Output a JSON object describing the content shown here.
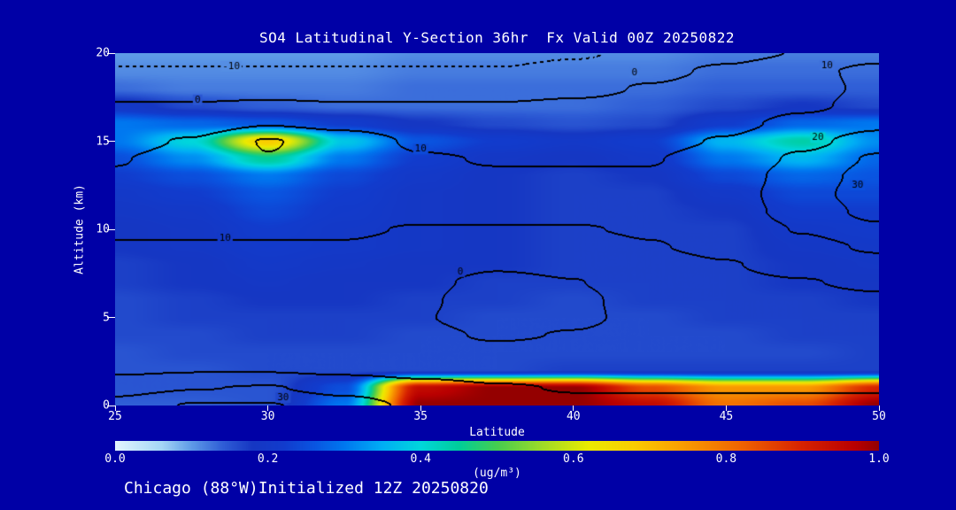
{
  "page": {
    "background": "#0000a6",
    "text_color": "#ffffff"
  },
  "title": "SO4 Latitudinal Y-Section 36hr  Fx Valid 00Z 20250822",
  "footer": "Chicago (88°W)Initialized 12Z 20250820",
  "axes": {
    "x_label": "Latitude",
    "y_label": "Altitude (km)",
    "x_ticks": [
      25,
      30,
      35,
      40,
      45,
      50
    ],
    "y_ticks": [
      0,
      5,
      10,
      15,
      20
    ],
    "x_range": [
      25,
      50
    ],
    "y_range": [
      0,
      20
    ]
  },
  "colorbar": {
    "label": "(ug/m³)",
    "tick_labels": [
      "0.0",
      "0.2",
      "0.4",
      "0.6",
      "0.8",
      "1.0"
    ],
    "range": [
      0,
      1
    ],
    "stops": [
      [
        0.0,
        228,
        246,
        255
      ],
      [
        0.06,
        165,
        215,
        246
      ],
      [
        0.1,
        95,
        155,
        232
      ],
      [
        0.14,
        48,
        95,
        215
      ],
      [
        0.18,
        22,
        55,
        195
      ],
      [
        0.22,
        18,
        60,
        205
      ],
      [
        0.26,
        10,
        85,
        225
      ],
      [
        0.3,
        0,
        120,
        240
      ],
      [
        0.35,
        0,
        175,
        245
      ],
      [
        0.4,
        0,
        215,
        220
      ],
      [
        0.45,
        0,
        205,
        155
      ],
      [
        0.5,
        70,
        205,
        80
      ],
      [
        0.56,
        160,
        220,
        40
      ],
      [
        0.62,
        235,
        235,
        0
      ],
      [
        0.68,
        250,
        205,
        0
      ],
      [
        0.74,
        250,
        160,
        0
      ],
      [
        0.82,
        240,
        100,
        0
      ],
      [
        0.9,
        215,
        35,
        0
      ],
      [
        0.97,
        185,
        0,
        0
      ],
      [
        1.0,
        148,
        0,
        0
      ]
    ]
  },
  "chart_data": {
    "type": "heatmap",
    "title": "SO4 Latitudinal Y-Section 36hr Fx Valid 00Z 20250822",
    "xlabel": "Latitude",
    "ylabel": "Altitude (km)",
    "xlim": [
      25,
      50
    ],
    "ylim": [
      0,
      20
    ],
    "value_range": [
      0.0,
      1.0
    ],
    "x_lat": [
      25,
      27.5,
      30,
      32.5,
      35,
      37.5,
      40,
      42.5,
      45,
      47.5,
      50
    ],
    "y_alt_km": [
      20,
      19,
      18,
      17,
      16,
      15,
      14,
      13,
      12,
      11,
      10,
      9,
      8,
      7,
      6,
      5,
      4,
      3,
      2,
      1,
      0
    ],
    "so4_ug_m3": [
      [
        0.1,
        0.1,
        0.1,
        0.1,
        0.11,
        0.11,
        0.11,
        0.11,
        0.12,
        0.12,
        0.12
      ],
      [
        0.11,
        0.11,
        0.11,
        0.11,
        0.12,
        0.12,
        0.12,
        0.12,
        0.13,
        0.13,
        0.13
      ],
      [
        0.13,
        0.12,
        0.12,
        0.12,
        0.13,
        0.13,
        0.13,
        0.13,
        0.14,
        0.14,
        0.14
      ],
      [
        0.2,
        0.16,
        0.14,
        0.13,
        0.13,
        0.13,
        0.13,
        0.14,
        0.16,
        0.18,
        0.16
      ],
      [
        0.3,
        0.28,
        0.26,
        0.22,
        0.18,
        0.16,
        0.15,
        0.16,
        0.22,
        0.28,
        0.3
      ],
      [
        0.3,
        0.4,
        0.68,
        0.38,
        0.26,
        0.22,
        0.2,
        0.22,
        0.36,
        0.44,
        0.32
      ],
      [
        0.25,
        0.32,
        0.45,
        0.3,
        0.22,
        0.19,
        0.18,
        0.2,
        0.3,
        0.36,
        0.28
      ],
      [
        0.22,
        0.25,
        0.3,
        0.24,
        0.2,
        0.18,
        0.17,
        0.18,
        0.24,
        0.28,
        0.26
      ],
      [
        0.2,
        0.22,
        0.26,
        0.22,
        0.19,
        0.18,
        0.17,
        0.17,
        0.2,
        0.24,
        0.24
      ],
      [
        0.19,
        0.2,
        0.24,
        0.21,
        0.19,
        0.18,
        0.17,
        0.17,
        0.18,
        0.22,
        0.22
      ],
      [
        0.18,
        0.19,
        0.22,
        0.2,
        0.19,
        0.18,
        0.17,
        0.17,
        0.17,
        0.2,
        0.21
      ],
      [
        0.18,
        0.19,
        0.21,
        0.2,
        0.19,
        0.18,
        0.17,
        0.17,
        0.17,
        0.19,
        0.2
      ],
      [
        0.17,
        0.18,
        0.2,
        0.19,
        0.18,
        0.18,
        0.17,
        0.17,
        0.17,
        0.18,
        0.19
      ],
      [
        0.17,
        0.18,
        0.19,
        0.18,
        0.18,
        0.17,
        0.17,
        0.17,
        0.17,
        0.18,
        0.18
      ],
      [
        0.16,
        0.17,
        0.18,
        0.18,
        0.17,
        0.17,
        0.16,
        0.17,
        0.17,
        0.17,
        0.18
      ],
      [
        0.16,
        0.17,
        0.17,
        0.17,
        0.17,
        0.16,
        0.16,
        0.16,
        0.17,
        0.17,
        0.17
      ],
      [
        0.16,
        0.16,
        0.17,
        0.17,
        0.16,
        0.16,
        0.16,
        0.16,
        0.16,
        0.17,
        0.17
      ],
      [
        0.15,
        0.16,
        0.16,
        0.16,
        0.16,
        0.16,
        0.16,
        0.16,
        0.16,
        0.16,
        0.17
      ],
      [
        0.15,
        0.15,
        0.16,
        0.16,
        0.16,
        0.16,
        0.17,
        0.17,
        0.17,
        0.17,
        0.17
      ],
      [
        0.15,
        0.15,
        0.15,
        0.25,
        0.95,
        1.0,
        1.0,
        0.85,
        0.75,
        0.75,
        0.9
      ],
      [
        0.14,
        0.14,
        0.15,
        0.3,
        1.0,
        1.0,
        1.0,
        0.95,
        0.8,
        0.85,
        1.0
      ]
    ],
    "contour_levels": [
      -10,
      0,
      10,
      20,
      30
    ],
    "contour_color": "#000000",
    "contour_field": [
      [
        -14,
        -14,
        -14,
        -14,
        -14,
        -14,
        -11,
        -7,
        -3,
        1,
        6
      ],
      [
        -9,
        -9,
        -9,
        -9,
        -9,
        -9,
        -6,
        -2,
        2,
        8,
        13
      ],
      [
        -4,
        -4,
        -4,
        -4,
        -4,
        -4,
        -2,
        1,
        4,
        8,
        12
      ],
      [
        1,
        1,
        2,
        1,
        1,
        1,
        2,
        3,
        5,
        9,
        13
      ],
      [
        5,
        6,
        10,
        8,
        5,
        5,
        5,
        6,
        8,
        13,
        18
      ],
      [
        8,
        11,
        21,
        15,
        9,
        8,
        8,
        8,
        11,
        18,
        25
      ],
      [
        10,
        13,
        20,
        16,
        11,
        10,
        10,
        10,
        14,
        22,
        32
      ],
      [
        11,
        12,
        14,
        13,
        11,
        11,
        11,
        11,
        15,
        25,
        35
      ],
      [
        12,
        12,
        12,
        12,
        12,
        12,
        12,
        12,
        16,
        26,
        37
      ],
      [
        12,
        12,
        12,
        12,
        12,
        12,
        12,
        12,
        16,
        24,
        34
      ],
      [
        11,
        11,
        11,
        11,
        10,
        10,
        10,
        11,
        14,
        21,
        28
      ],
      [
        10,
        10,
        10,
        10,
        9,
        7,
        8,
        10,
        12,
        17,
        22
      ],
      [
        9,
        9,
        9,
        9,
        6,
        2,
        4,
        8,
        10,
        13,
        16
      ],
      [
        8,
        8,
        8,
        8,
        3,
        -3,
        0,
        6,
        9,
        10,
        12
      ],
      [
        7,
        7,
        7,
        7,
        2,
        -6,
        -2,
        5,
        7,
        8,
        9
      ],
      [
        6,
        6,
        6,
        6,
        1,
        -5,
        -2,
        4,
        6,
        7,
        7
      ],
      [
        6,
        6,
        6,
        6,
        3,
        -1,
        1,
        5,
        6,
        6,
        6
      ],
      [
        7,
        7,
        7,
        7,
        6,
        4,
        5,
        7,
        7,
        7,
        7
      ],
      [
        9,
        10,
        10,
        9,
        8,
        7,
        7,
        8,
        8,
        8,
        8
      ],
      [
        17,
        20,
        21,
        17,
        13,
        11,
        10,
        10,
        10,
        10,
        10
      ],
      [
        24,
        31,
        31,
        25,
        18,
        14,
        12,
        12,
        12,
        12,
        12
      ]
    ],
    "contour_labels": [
      {
        "text": "-10",
        "lat": 28.8,
        "alt": 19.25
      },
      {
        "text": "0",
        "lat": 27.7,
        "alt": 17.35
      },
      {
        "text": "0",
        "lat": 42.0,
        "alt": 18.9
      },
      {
        "text": "10",
        "lat": 48.3,
        "alt": 19.3
      },
      {
        "text": "10",
        "lat": 35.0,
        "alt": 14.55
      },
      {
        "text": "10",
        "lat": 28.6,
        "alt": 9.5
      },
      {
        "text": "20",
        "lat": 48.0,
        "alt": 15.2
      },
      {
        "text": "30",
        "lat": 49.3,
        "alt": 12.5
      },
      {
        "text": "0",
        "lat": 36.3,
        "alt": 7.6
      },
      {
        "text": "30",
        "lat": 30.5,
        "alt": 0.45
      }
    ]
  }
}
